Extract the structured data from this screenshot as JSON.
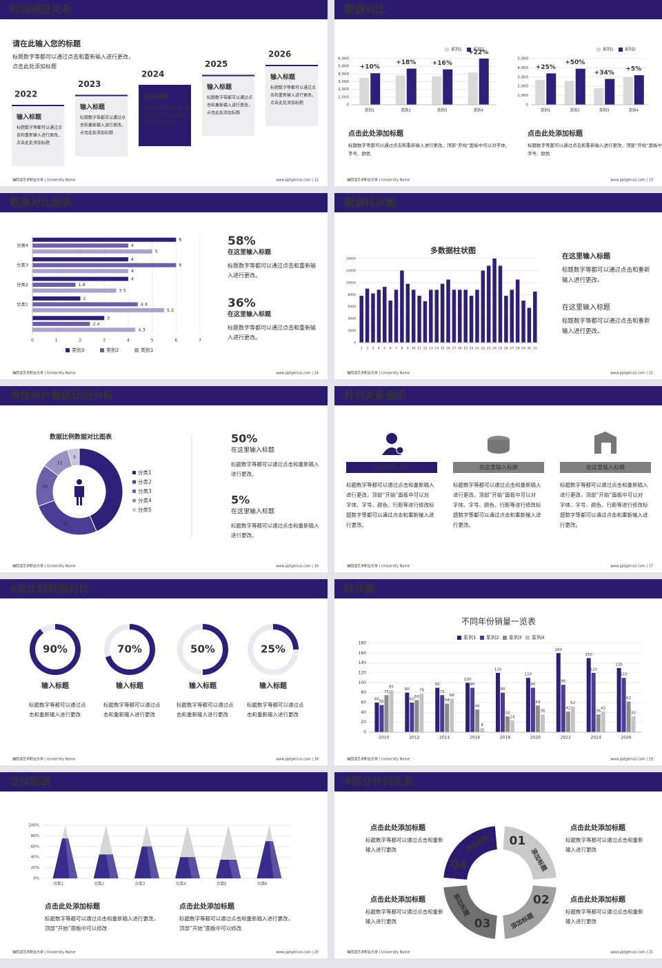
{
  "slides": [
    {
      "title": "时间递进关系",
      "footer_left": "瑞西请艺术职业大学 | University Name",
      "footer_right": "www.pptgenius.com | 12",
      "heading": "请在此输入您的标题",
      "description": "标题数字等都可以通过点击和重新输入进行更改，点击此处添加标题",
      "steps": [
        {
          "year": "2022",
          "title": "输入标题",
          "text": "标题数字等都可以通过点击和重新输入进行更改，点击此处添加标题"
        },
        {
          "year": "2023",
          "title": "输入标题",
          "text": "标题数字等都可以通过点击和重新输入进行更改，点击此处添加标题"
        },
        {
          "year": "2024",
          "title": "输入标题",
          "text": "标题数字等都可以通过点击和重新输入进行更改，点击此处添加标题"
        },
        {
          "year": "2025",
          "title": "输入标题",
          "text": "标题数字等都可以通过点击和重新输入进行更改，点击此处添加标题"
        },
        {
          "year": "2026",
          "title": "输入标题",
          "text": "标题数字等都可以通过点击和重新输入进行更改，点击此处添加标题"
        }
      ]
    },
    {
      "title": "数据对比",
      "footer_left": "瑞西请艺术职业大学 | University Name",
      "footer_right": "www.pptgenius.com | 13",
      "chart_data": [
        {
          "type": "bar",
          "categories": [
            "类别1",
            "类别2",
            "类别3",
            "类别4"
          ],
          "annotations": [
            "+10%",
            "+18%",
            "+16%",
            "+22%"
          ],
          "series": [
            {
              "name": "系列1",
              "color": "#d9d9d9",
              "values": [
                3500,
                3800,
                3700,
                4200
              ]
            },
            {
              "name": "系列2",
              "color": "#2e1f7a",
              "values": [
                4100,
                4700,
                4600,
                6000
              ]
            }
          ],
          "ylim": [
            0,
            6000
          ],
          "yticks": [
            0,
            {
              "value": 1000,
              "label": "1,000"
            },
            {
              "value": 2000,
              "label": "2,000"
            },
            {
              "value": 3000,
              "label": "3,000"
            },
            {
              "value": 4000,
              "label": "4,000"
            },
            {
              "value": 5000,
              "label": "5,000"
            },
            {
              "value": 6000,
              "label": "6,000"
            }
          ]
        },
        {
          "type": "bar",
          "categories": [
            "类别1",
            "类别2",
            "类别3",
            "类别4"
          ],
          "annotations": [
            "+25%",
            "+50%",
            "+34%",
            "+5%"
          ],
          "series": [
            {
              "name": "系列1",
              "color": "#d9d9d9",
              "values": [
                2700,
                2600,
                1800,
                3000
              ]
            },
            {
              "name": "系列2",
              "color": "#2e1f7a",
              "values": [
                3400,
                3900,
                2800,
                3200
              ]
            }
          ],
          "ylim": [
            0,
            5000
          ],
          "yticks": [
            0,
            {
              "value": 1000,
              "label": "1,000"
            },
            {
              "value": 2000,
              "label": "2,000"
            },
            {
              "value": 3000,
              "label": "3,000"
            },
            {
              "value": 4000,
              "label": "4,000"
            },
            {
              "value": 5000,
              "label": "5,000"
            }
          ]
        }
      ],
      "captions": [
        {
          "heading": "点击此处添加标题",
          "text": "标题数字等都可以通过点击和重新输入进行更改，顶部“开始”面板中可以对字体、字号、颜色"
        },
        {
          "heading": "点击此处添加标题",
          "text": "标题数字等都可以通过点击和重新输入进行更改，顶部“开始”面板中可以对字体、字号、颜色"
        }
      ]
    },
    {
      "title": "数据对比图表",
      "footer_left": "瑞西请艺术职业大学 | University Name",
      "footer_right": "www.pptgenius.com | 14",
      "chart_data": {
        "type": "hbar",
        "categories": [
          "分类4",
          "分类3",
          "分类2",
          "分类1",
          null
        ],
        "series": [
          {
            "name": "类别3",
            "color": "#2e1f7a",
            "values": [
              6,
              4,
              4,
              2,
              3
            ]
          },
          {
            "name": "类别2",
            "color": "#6a5fa8",
            "values": [
              4,
              6,
              1.8,
              4.4,
              2.4
            ]
          },
          {
            "name": "类别1",
            "color": "#a9a2cf",
            "values": [
              5,
              4,
              3.5,
              5.5,
              4.3
            ]
          }
        ],
        "xlim": [
          0,
          7
        ],
        "xticks": [
          0,
          1,
          2,
          3,
          4,
          5,
          6,
          7
        ]
      },
      "stats": [
        {
          "value": "58%",
          "title": "在这里输入标题",
          "text": "标题数字等都可以通过点击和重新输入进行更改。"
        },
        {
          "value": "36%",
          "title": "在这里输入标题",
          "text": "标题数字等都可以通过点击和重新输入进行更改。"
        }
      ]
    },
    {
      "title": "数据柱状图",
      "footer_left": "瑞西请艺术职业大学 | University Name",
      "footer_right": "www.pptgenius.com | 15",
      "chart_data": {
        "type": "bar",
        "title": "多数据柱状图",
        "categories": [
          "1",
          "2",
          "3",
          "4",
          "5",
          "6",
          "7",
          "8",
          "9",
          "10",
          "11",
          "12",
          "13",
          "14",
          "15",
          "16",
          "17",
          "18",
          "19",
          "20",
          "21",
          "22",
          "23",
          "24",
          "25",
          "26",
          "27",
          "28",
          "29",
          "30",
          "31"
        ],
        "series": [
          {
            "color": "#2e1f7a",
            "values": [
              7800,
              9000,
              8200,
              8800,
              9300,
              7000,
              8800,
              12000,
              9800,
              8800,
              7800,
              6900,
              8800,
              8800,
              9800,
              10500,
              8800,
              8800,
              8800,
              7800,
              8800,
              12000,
              12800,
              14000,
              12800,
              7800,
              8800,
              10500,
              7000,
              5800,
              8500
            ]
          }
        ],
        "ylim": [
          0,
          14000
        ],
        "yticks": [
          0,
          2000,
          4000,
          6000,
          8000,
          10000,
          12000,
          14000
        ]
      },
      "stats": [
        {
          "title": "在这里输入标题",
          "text": "标题数字等都可以通过点击和重新输入进行更改。"
        },
        {
          "title": "在这里输入标题",
          "text": "标题数字等都可以通过点击和重新输入进行更改。"
        }
      ]
    },
    {
      "title": "男性用户数据比例分析",
      "footer_left": "瑞西请艺术职业大学 | University Name",
      "footer_right": "www.pptgenius.com | 16",
      "chart_data": {
        "type": "donut",
        "title": "数据比例数据对比图表",
        "categories": [
          "分类1",
          "分类2",
          "分类3",
          "分类4",
          "分类5"
        ],
        "values": [
          50,
          30,
          18,
          12,
          5
        ],
        "colors": [
          "#2e1f7a",
          "#4b3c96",
          "#6b5fae",
          "#9990c4",
          "#c8c3e0"
        ]
      },
      "stats": [
        {
          "value": "50%",
          "title": "在这里输入标题",
          "text": "标题数字等都可以通过点击和重新输入进行更改。"
        },
        {
          "value": "5%",
          "title": "在这里输入标题",
          "text": "标题数字等都可以通过点击和重新输入进行更改。"
        }
      ]
    },
    {
      "title": "并列关系图示",
      "footer_left": "瑞西请艺术职业大学 | University Name",
      "footer_right": "www.pptgenius.com | 17",
      "items": [
        {
          "label": "在这里输入标题",
          "text": "标题数字等都可以通过点击和重新输入进行更改，顶部“开始”面板中可以对字体、字号、颜色、行距等进行修改标题数字等都可以通过点击和重新输入进行更改。"
        },
        {
          "label": "在这里输入标题",
          "text": "标题数字等都可以通过点击和重新输入进行更改，顶部“开始”面板中可以对字体、字号、颜色、行距等进行修改标题数字等都可以通过点击和重新输入进行更改。"
        },
        {
          "label": "在这里输入标题",
          "text": "标题数字等都可以通过点击和重新输入进行更改，顶部“开始”面板中可以对字体、字号、颜色、行距等进行修改标题数字等都可以通过点击和重新输入进行更改。"
        }
      ]
    },
    {
      "title": "4组比例数据对比",
      "footer_left": "瑞西请艺术职业大学 | University Name",
      "footer_right": "www.pptgenius.com | 18",
      "chart_data": {
        "type": "ring",
        "values": [
          90,
          70,
          50,
          25
        ],
        "value_labels": [
          "90%",
          "70%",
          "50%",
          "25%"
        ],
        "color": "#2e1f7a"
      },
      "items": [
        {
          "title": "输入标题",
          "text": "标题数字等都可以通过点击和重新输入进行更改"
        },
        {
          "title": "输入标题",
          "text": "标题数字等都可以通过点击和重新输入进行更改"
        },
        {
          "title": "输入标题",
          "text": "标题数字等都可以通过点击和重新输入进行更改"
        },
        {
          "title": "输入标题",
          "text": "标题数字等都可以通过点击和重新输入进行更改"
        }
      ]
    },
    {
      "title": "柱状图",
      "footer_left": "瑞西请艺术职业大学 | University Name",
      "footer_right": "www.pptgenius.com | 19",
      "chart_data": {
        "type": "bar",
        "title": "不同年份销量一览表",
        "categories": [
          "2010",
          "2012",
          "2014",
          "2016",
          "2018",
          "2020",
          "2022",
          "2024",
          "2026"
        ],
        "series": [
          {
            "name": "系列1",
            "color": "#2e1f7a",
            "values": [
              60,
              80,
              90,
              100,
              120,
              110,
              160,
              150,
              130
            ]
          },
          {
            "name": "系列2",
            "color": "#4b3c96",
            "values": [
              55,
              60,
              75,
              90,
              80,
              90,
              96,
              120,
              110
            ]
          },
          {
            "name": "系列3",
            "color": "#8c8c8c",
            "values": [
              75,
              65,
              58,
              46,
              32,
              54,
              42,
              36,
              62
            ]
          },
          {
            "name": "系列4",
            "color": "#c4c4c4",
            "values": [
              85,
              78,
              68,
              8,
              24,
              36,
              52,
              42,
              32
            ]
          }
        ],
        "ylim": [
          0,
          180
        ],
        "yticks": [
          0,
          20,
          40,
          60,
          80,
          100,
          120,
          140,
          160,
          180
        ]
      }
    },
    {
      "title": "立体图表",
      "footer_left": "瑞西请艺术职业大学 | University Name",
      "footer_right": "www.pptgenius.com | 20",
      "chart_data": {
        "type": "pyramid",
        "categories": [
          "分类1",
          "分类2",
          "分类3",
          "分类4",
          "分类5",
          "分类6"
        ],
        "values": [
          75,
          45,
          60,
          40,
          35,
          70
        ],
        "color": "#3a2c8a",
        "ylim": [
          0,
          100
        ],
        "yticks": [
          {
            "value": 0,
            "label": "0%"
          },
          {
            "value": 20,
            "label": "20%"
          },
          {
            "value": 40,
            "label": "40%"
          },
          {
            "value": 60,
            "label": "60%"
          },
          {
            "value": 80,
            "label": "80%"
          },
          {
            "value": 100,
            "label": "100%"
          }
        ]
      },
      "captions": [
        {
          "heading": "点击此处添加标题",
          "text": "标题数字等都可以通过点击和重新输入进行更改，顶部“开始”面板中可以修改"
        },
        {
          "heading": "点击此处添加标题",
          "text": "标题数字等都可以通过点击和重新输入进行更改，顶部“开始”面板中可以修改"
        }
      ]
    },
    {
      "title": "4部分并列关系",
      "footer_left": "瑞西请艺术职业大学 | University Name",
      "footer_right": "www.pptgenius.com | 21",
      "segments": [
        {
          "number": "01",
          "label": "添加标题"
        },
        {
          "number": "02",
          "label": "添加标题"
        },
        {
          "number": "03",
          "label": "添加标题"
        },
        {
          "number": "04",
          "label": "添加标题"
        }
      ],
      "blocks": [
        {
          "heading": "点击此处添加标题",
          "text": "标题数字等都可以通过点击和重新输入进行更改"
        },
        {
          "heading": "点击此处添加标题",
          "text": "标题数字等都可以通过点击和重新输入进行更改"
        },
        {
          "heading": "点击此处添加标题",
          "text": "标题数字等都可以通过点击和重新输入进行更改"
        },
        {
          "heading": "点击此处添加标题",
          "text": "标题数字等都可以通过点击和重新输入进行更改"
        }
      ]
    }
  ]
}
